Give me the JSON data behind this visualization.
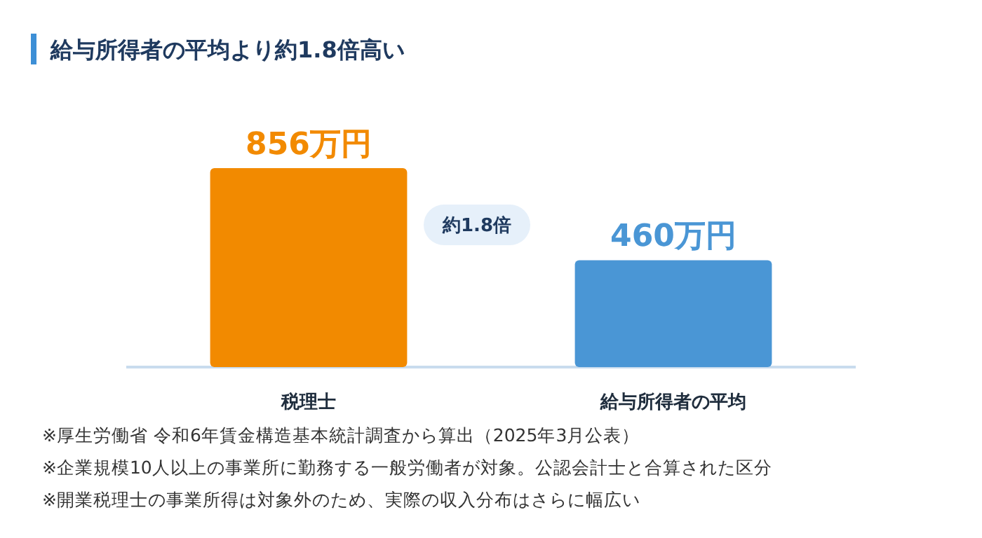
{
  "chart_data": {
    "type": "bar",
    "title": "給与所得者の平均より約1.8倍高い",
    "categories": [
      "税理士",
      "給与所得者の平均"
    ],
    "values": [
      856,
      460
    ],
    "colors": [
      "#f28a00",
      "#4a96d5"
    ],
    "value_labels": [
      "856万円",
      "460万円"
    ],
    "annotations": [
      "約1.8倍",
      "※厚生労働省 令和6年賃金構造基本統計調査から算出（2025年3月公表）",
      "※企業規模10人以上の事業所に勤務する一般労働者が対象。公認会計士と合算された区分",
      "※開業税理士の事業所得は対象外のため、実際の収入分布はさらに幅広い"
    ]
  }
}
